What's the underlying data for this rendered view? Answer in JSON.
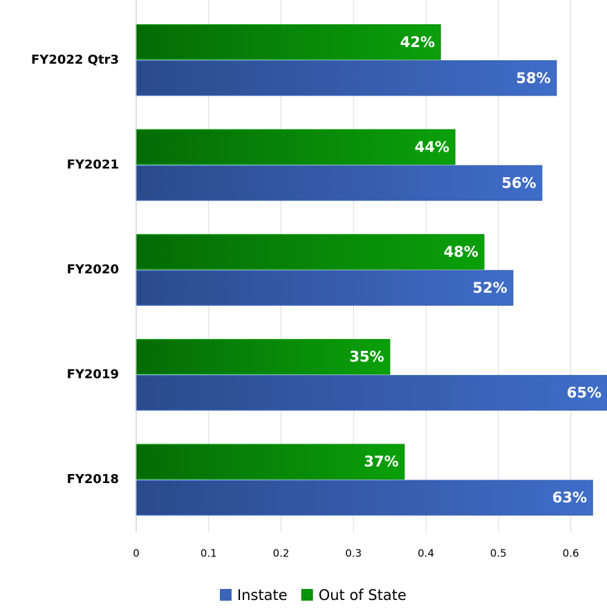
{
  "chart_data": {
    "type": "bar",
    "orientation": "horizontal",
    "categories": [
      "FY2022 Qtr3",
      "FY2021",
      "FY2020",
      "FY2019",
      "FY2018"
    ],
    "series": [
      {
        "name": "Instate",
        "color": "#3a64b8",
        "values": [
          0.58,
          0.56,
          0.52,
          0.65,
          0.63
        ],
        "value_labels": [
          "58%",
          "56%",
          "52%",
          "65%",
          "63%"
        ]
      },
      {
        "name": "Out of State",
        "color": "#0a940a",
        "values": [
          0.42,
          0.44,
          0.48,
          0.35,
          0.37
        ],
        "value_labels": [
          "42%",
          "44%",
          "48%",
          "35%",
          "37%"
        ]
      }
    ],
    "xlim": [
      0,
      0.65
    ],
    "xticks": [
      0,
      0.1,
      0.2,
      0.3,
      0.4,
      0.5,
      0.6
    ],
    "grid": true,
    "legend": "bottom"
  }
}
